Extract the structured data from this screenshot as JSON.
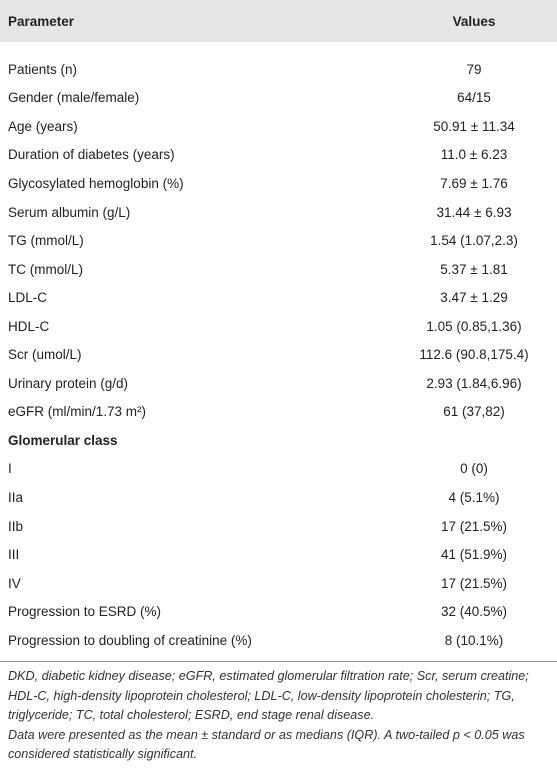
{
  "table": {
    "header": [
      "Parameter",
      "Values"
    ],
    "rows": [
      [
        "Patients (n)",
        "79"
      ],
      [
        "Gender (male/female)",
        "64/15"
      ],
      [
        "Age (years)",
        "50.91 ± 11.34"
      ],
      [
        "Duration of diabetes (years)",
        "11.0 ± 6.23"
      ],
      [
        "Glycosylated hemoglobin (%)",
        "7.69 ± 1.76"
      ],
      [
        "Serum albumin (g/L)",
        "31.44 ± 6.93"
      ],
      [
        "TG (mmol/L)",
        "1.54 (1.07,2.3)"
      ],
      [
        "TC (mmol/L)",
        "5.37 ± 1.81"
      ],
      [
        "LDL-C",
        "3.47 ± 1.29"
      ],
      [
        "HDL-C",
        "1.05 (0.85,1.36)"
      ],
      [
        "Scr (umol/L)",
        "112.6 (90.8,175.4)"
      ],
      [
        "Urinary protein (g/d)",
        "2.93 (1.84,6.96)"
      ],
      [
        "eGFR (ml/min/1.73 m²)",
        "61 (37,82)"
      ],
      [
        "Glomerular class"
      ],
      [
        "I",
        "0 (0)"
      ],
      [
        "IIa",
        "4 (5.1%)"
      ],
      [
        "IIb",
        "17 (21.5%)"
      ],
      [
        "III",
        "41 (51.9%)"
      ],
      [
        "IV",
        "17 (21.5%)"
      ],
      [
        "Progression to ESRD (%)",
        "32 (40.5%)"
      ],
      [
        "Progression to doubling of creatinine (%)",
        "8 (10.1%)"
      ]
    ]
  },
  "footnotes": [
    "DKD, diabetic kidney disease; eGFR, estimated glomerular filtration rate; Scr, serum creatine; HDL-C, high-density lipoprotein cholesterol; LDL-C, low-density lipoprotein cholesterin; TG, triglyceride; TC, total cholesterol; ESRD, end stage renal disease.",
    "Data were presented as the mean ± standard or as medians (IQR). A two-tailed p < 0.05 was considered statistically significant."
  ]
}
